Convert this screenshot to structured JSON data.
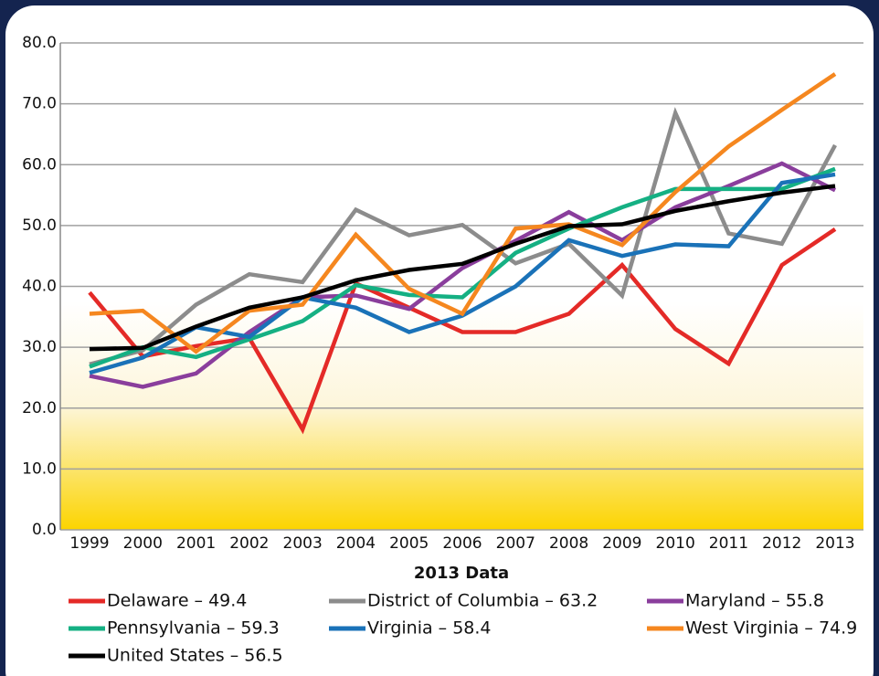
{
  "chart_data": {
    "type": "line",
    "categories": [
      "1999",
      "2000",
      "2001",
      "2002",
      "2003",
      "2004",
      "2005",
      "2006",
      "2007",
      "2008",
      "2009",
      "2010",
      "2011",
      "2012",
      "2013"
    ],
    "ylim": [
      0,
      80
    ],
    "yticks": [
      {
        "value": 0,
        "label": "0.0"
      },
      {
        "value": 10,
        "label": "10.0"
      },
      {
        "value": 20,
        "label": "20.0"
      },
      {
        "value": 30,
        "label": "30.0"
      },
      {
        "value": 40,
        "label": "40.0"
      },
      {
        "value": 50,
        "label": "50.0"
      },
      {
        "value": 60,
        "label": "60.0"
      },
      {
        "value": 70,
        "label": "70.0"
      },
      {
        "value": 80,
        "label": "80.0"
      }
    ],
    "grid": true,
    "legend_title": "2013 Data",
    "series": [
      {
        "name": "Delaware – 49.4",
        "color": "#e42a27",
        "values": [
          39,
          28.5,
          30.2,
          31.5,
          16.5,
          40.5,
          36.5,
          32.5,
          32.5,
          35.5,
          43.5,
          33,
          27.3,
          43.5,
          49.4
        ]
      },
      {
        "name": "District of Columbia – 63.2",
        "color": "#8c8c8c",
        "values": [
          27.2,
          29.5,
          37,
          42,
          40.7,
          52.6,
          48.4,
          50.1,
          43.8,
          47,
          38.5,
          68.5,
          48.7,
          47,
          63.2
        ]
      },
      {
        "name": "Maryland – 55.8",
        "color": "#8a3e9c",
        "values": [
          25.3,
          23.5,
          25.7,
          32.5,
          38.2,
          38.5,
          36.3,
          43,
          47.5,
          52.2,
          47.6,
          53,
          56.5,
          60.2,
          55.8
        ]
      },
      {
        "name": "Pennsylvania – 59.3",
        "color": "#15b083",
        "values": [
          26.8,
          30,
          28.4,
          31.3,
          34.3,
          40.2,
          38.6,
          38.2,
          45.5,
          49.5,
          53,
          56,
          56,
          56,
          59.3
        ]
      },
      {
        "name": "Virginia – 58.4",
        "color": "#1a72b8",
        "values": [
          25.8,
          28.3,
          33.3,
          31.7,
          38.2,
          36.5,
          32.5,
          35.2,
          40,
          47.6,
          45,
          46.9,
          46.6,
          57,
          58.4
        ]
      },
      {
        "name": "West Virginia – 74.9",
        "color": "#f5871f",
        "values": [
          35.5,
          36,
          29.3,
          36,
          37,
          48.5,
          39.6,
          35.5,
          49.5,
          50.2,
          46.8,
          55.5,
          63,
          69,
          74.9
        ]
      },
      {
        "name": "United States – 56.5",
        "color": "#000000",
        "values": [
          29.7,
          29.9,
          33.4,
          36.5,
          38.2,
          41,
          42.7,
          43.7,
          47,
          49.9,
          50.2,
          52.4,
          54,
          55.4,
          56.5
        ]
      }
    ]
  }
}
